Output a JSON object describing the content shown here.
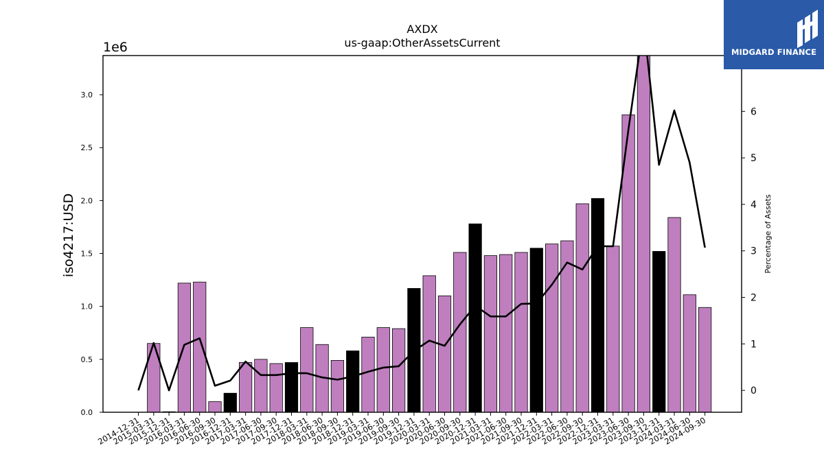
{
  "chart_data": {
    "type": "bar",
    "title": "AXDX",
    "subtitle": "us-gaap:OtherAssetsCurrent",
    "ylabel": "iso4217:USD",
    "y_offset_label": "1e6",
    "y2label": "Percentage of Assets",
    "ylim": [
      0,
      3.37
    ],
    "y2lim": [
      -0.47,
      7.2
    ],
    "yticks": [
      0.0,
      0.5,
      1.0,
      1.5,
      2.0,
      2.5,
      3.0
    ],
    "y2ticks": [
      0,
      1,
      2,
      3,
      4,
      5,
      6
    ],
    "grid": false,
    "categories": [
      "2014-12-31",
      "2015-03-31",
      "2015-12-31",
      "2016-03-31",
      "2016-06-30",
      "2016-09-30",
      "2016-12-31",
      "2017-03-31",
      "2017-06-30",
      "2017-09-30",
      "2017-12-31",
      "2018-03-31",
      "2018-06-30",
      "2018-09-30",
      "2018-12-31",
      "2019-03-31",
      "2019-06-30",
      "2019-09-30",
      "2019-12-31",
      "2020-03-31",
      "2020-06-30",
      "2020-09-30",
      "2020-12-31",
      "2021-03-31",
      "2021-06-30",
      "2021-09-30",
      "2021-12-31",
      "2022-03-31",
      "2022-06-30",
      "2022-09-30",
      "2022-12-31",
      "2023-03-31",
      "2023-06-30",
      "2023-09-30",
      "2023-12-31",
      "2024-03-31",
      "2024-06-30",
      "2024-09-30"
    ],
    "series": [
      {
        "kind": "bar",
        "axis": "left",
        "unit": "1e6 USD",
        "values": [
          0.0,
          0.65,
          0.005,
          1.22,
          1.23,
          0.1,
          0.18,
          0.47,
          0.5,
          0.46,
          0.47,
          0.8,
          0.64,
          0.49,
          0.58,
          0.71,
          0.8,
          0.79,
          1.17,
          1.29,
          1.1,
          1.51,
          1.78,
          1.48,
          1.49,
          1.51,
          1.55,
          1.59,
          1.62,
          1.97,
          2.02,
          1.57,
          2.81,
          3.4,
          1.52,
          1.84,
          1.11,
          0.99
        ],
        "highlight": [
          false,
          false,
          false,
          false,
          false,
          false,
          true,
          false,
          false,
          false,
          true,
          false,
          false,
          false,
          true,
          false,
          false,
          false,
          true,
          false,
          false,
          false,
          true,
          false,
          false,
          false,
          true,
          false,
          false,
          false,
          true,
          false,
          false,
          false,
          true,
          false,
          false,
          false
        ]
      },
      {
        "kind": "line",
        "axis": "right",
        "values": [
          0.0,
          1.02,
          0.0,
          0.98,
          1.12,
          0.1,
          0.21,
          0.62,
          0.33,
          0.33,
          0.37,
          0.37,
          0.28,
          0.23,
          0.3,
          0.4,
          0.49,
          0.52,
          0.85,
          1.07,
          0.96,
          1.42,
          1.82,
          1.59,
          1.59,
          1.86,
          1.87,
          2.27,
          2.75,
          2.6,
          3.1,
          3.1,
          5.6,
          7.9,
          4.85,
          6.02,
          4.9,
          3.07
        ]
      }
    ],
    "colors": {
      "bar": "#bf7fbf",
      "bar_highlight": "#000000",
      "line": "#000000"
    }
  },
  "logo": {
    "text": "MIDGARD FINANCE",
    "background": "#2a5aa8"
  }
}
